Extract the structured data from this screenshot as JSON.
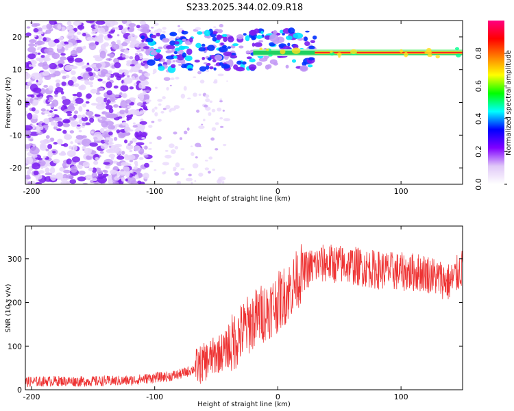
{
  "title": "S233.2025.344.02.09.R18",
  "chart_data": [
    {
      "type": "heatmap",
      "title": "S233.2025.344.02.09.R18",
      "xlabel": "Height of straight line (km)",
      "ylabel": "Frequency (Hz)",
      "xlim": [
        -205,
        150
      ],
      "ylim": [
        -25,
        25
      ],
      "x_ticks": [
        -200,
        -100,
        0,
        100
      ],
      "y_ticks": [
        -20,
        -10,
        0,
        10,
        20
      ],
      "x_tick_labels": [
        "-200",
        "-100",
        "0",
        "100"
      ],
      "y_tick_labels": [
        "-20",
        "-10",
        "0",
        "10",
        "20"
      ],
      "grid": false,
      "colorbar": {
        "label": "Normalized spectral amplitude",
        "range": [
          0,
          1
        ],
        "ticks": [
          0.0,
          0.2,
          0.4,
          0.6,
          0.8
        ],
        "tick_labels": [
          "0.0",
          "0.2",
          "0.4",
          "0.6",
          "0.8"
        ],
        "colormap": [
          "#ffffff",
          "#e0c8f8",
          "#8000ff",
          "#0000ff",
          "#00ffff",
          "#00ff00",
          "#ffff00",
          "#ff8000",
          "#ff0000",
          "#ff0080"
        ]
      },
      "features": [
        {
          "description_x": "scattered purple noise",
          "x_range": [
            -205,
            -110
          ],
          "freq_range": [
            -25,
            25
          ]
        },
        {
          "description_x": "bright line",
          "x_range": [
            30,
            150
          ],
          "freq": 15.2
        }
      ]
    },
    {
      "type": "line",
      "xlabel": "Height of straight line (km)",
      "ylabel": "SNR (10 * v/v)",
      "xlim": [
        -205,
        150
      ],
      "ylim": [
        0,
        375
      ],
      "x_ticks": [
        -200,
        -100,
        0,
        100
      ],
      "y_ticks": [
        0,
        100,
        200,
        300
      ],
      "x_tick_labels": [
        "-200",
        "-100",
        "0",
        "100"
      ],
      "y_tick_labels": [
        "0",
        "100",
        "200",
        "300"
      ],
      "grid": false,
      "series": [
        {
          "color": "#ee3333",
          "x": [
            -205,
            -180,
            -160,
            -140,
            -120,
            -100,
            -90,
            -80,
            -70,
            -60,
            -50,
            -40,
            -30,
            -20,
            -10,
            0,
            5,
            10,
            15,
            20,
            30,
            40,
            60,
            80,
            100,
            120,
            140,
            150
          ],
          "y": [
            18,
            20,
            19,
            20,
            21,
            28,
            30,
            35,
            45,
            62,
            80,
            95,
            130,
            160,
            180,
            200,
            215,
            230,
            250,
            270,
            285,
            290,
            285,
            275,
            270,
            268,
            245,
            280
          ]
        }
      ]
    }
  ]
}
